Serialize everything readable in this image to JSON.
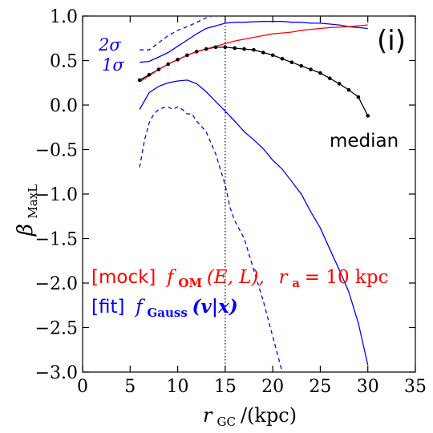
{
  "chart_data": {
    "type": "line",
    "panel_label": "(i)",
    "xlabel": "r_GC/(kpc)",
    "xlabel_main": "r",
    "xlabel_sub": "GC",
    "xlabel_units": "/(kpc)",
    "ylabel_main": "β",
    "ylabel_sub": "MaxL",
    "xlim": [
      0,
      35
    ],
    "ylim": [
      -3.0,
      1.0
    ],
    "x_ticks": [
      0,
      5,
      10,
      15,
      20,
      25,
      30,
      35
    ],
    "x_tick_labels": [
      "0",
      "5",
      "10",
      "15",
      "20",
      "25",
      "30",
      "35"
    ],
    "y_ticks": [
      1.0,
      0.5,
      0.0,
      -0.5,
      -1.0,
      -1.5,
      -2.0,
      -2.5,
      -3.0
    ],
    "y_tick_labels": [
      "1.0",
      "0.5",
      "0.0",
      "−0.5",
      "−1.0",
      "−1.5",
      "−2.0",
      "−2.5",
      "−3.0"
    ],
    "vline_x": 15,
    "colors": {
      "median": "#000000",
      "mock": "#ff0000",
      "fit": "#0000ff"
    },
    "series": [
      {
        "name": "median",
        "style": "line-dots",
        "x": [
          6,
          7,
          8,
          9,
          10,
          11,
          12,
          13,
          14,
          15,
          16,
          17,
          18,
          19,
          20,
          21,
          22,
          23,
          24,
          25,
          26,
          27,
          28,
          29,
          30
        ],
        "y": [
          0.28,
          0.34,
          0.4,
          0.46,
          0.51,
          0.56,
          0.6,
          0.63,
          0.65,
          0.65,
          0.64,
          0.63,
          0.62,
          0.59,
          0.56,
          0.52,
          0.48,
          0.44,
          0.4,
          0.36,
          0.3,
          0.24,
          0.17,
          0.09,
          -0.12
        ]
      },
      {
        "name": "mock",
        "style": "solid",
        "x": [
          6,
          7,
          8,
          9,
          10,
          11,
          12,
          13,
          14,
          15,
          16,
          17,
          18,
          19,
          20,
          21,
          22,
          23,
          24,
          25,
          26,
          27,
          28,
          29,
          30
        ],
        "y": [
          0.26,
          0.33,
          0.4,
          0.46,
          0.51,
          0.56,
          0.6,
          0.63,
          0.66,
          0.69,
          0.72,
          0.74,
          0.76,
          0.78,
          0.8,
          0.81,
          0.82,
          0.84,
          0.85,
          0.86,
          0.87,
          0.875,
          0.88,
          0.89,
          0.9
        ]
      },
      {
        "name": "1σ upper",
        "style": "solid",
        "x": [
          6,
          7,
          8,
          9,
          10,
          11,
          12,
          13,
          14,
          15,
          16,
          17,
          18,
          19,
          20,
          21,
          22,
          23,
          24,
          25,
          26,
          27,
          28,
          29,
          30
        ],
        "y": [
          0.48,
          0.49,
          0.54,
          0.59,
          0.66,
          0.73,
          0.8,
          0.86,
          0.89,
          0.92,
          0.93,
          0.93,
          0.935,
          0.94,
          0.94,
          0.94,
          0.93,
          0.93,
          0.92,
          0.92,
          0.91,
          0.9,
          0.88,
          0.87,
          0.86
        ]
      },
      {
        "name": "1σ lower",
        "style": "solid",
        "x": [
          6,
          7,
          8,
          9,
          10,
          11,
          12,
          13,
          14,
          15,
          16,
          17,
          18,
          19,
          20,
          21,
          22,
          23,
          24,
          25,
          26,
          27,
          28,
          29,
          30
        ],
        "y": [
          -0.05,
          0.14,
          0.21,
          0.25,
          0.27,
          0.28,
          0.24,
          0.15,
          0.04,
          -0.07,
          -0.18,
          -0.3,
          -0.39,
          -0.49,
          -0.62,
          -0.72,
          -0.86,
          -1.0,
          -1.2,
          -1.38,
          -1.62,
          -1.85,
          -2.1,
          -2.45,
          -2.92
        ]
      },
      {
        "name": "2σ upper",
        "style": "dashed",
        "x": [
          6,
          7,
          8,
          9,
          10,
          11,
          12,
          13,
          13.5
        ],
        "y": [
          0.62,
          0.62,
          0.7,
          0.78,
          0.84,
          0.88,
          0.93,
          0.98,
          1.0
        ]
      },
      {
        "name": "2σ lower",
        "style": "dashed",
        "x": [
          6,
          6.5,
          7,
          7.5,
          8,
          8.5,
          9,
          9.5,
          10,
          10.5,
          11,
          11.5,
          12,
          13,
          14,
          15,
          15.5,
          16,
          17,
          18,
          19,
          20,
          21
        ],
        "y": [
          -0.7,
          -0.4,
          -0.2,
          -0.1,
          -0.05,
          -0.03,
          -0.02,
          -0.05,
          -0.02,
          -0.05,
          -0.1,
          -0.1,
          -0.18,
          -0.3,
          -0.55,
          -0.9,
          -1.15,
          -1.3,
          -1.5,
          -1.85,
          -2.2,
          -2.6,
          -3.0
        ]
      }
    ],
    "annotations": {
      "sigma2": "2σ",
      "sigma1": "1σ",
      "median": "median",
      "mock_tag": "[mock]",
      "mock_formula": "f",
      "mock_formula_sub": "OM",
      "mock_formula_args": "(E, L),",
      "mock_ra": "r",
      "mock_ra_sub": "a",
      "mock_ra_value": " = 10 kpc",
      "fit_tag": "[fit]",
      "fit_formula": "f",
      "fit_formula_sub": "Gauss",
      "fit_formula_args": "(v|x)"
    }
  }
}
